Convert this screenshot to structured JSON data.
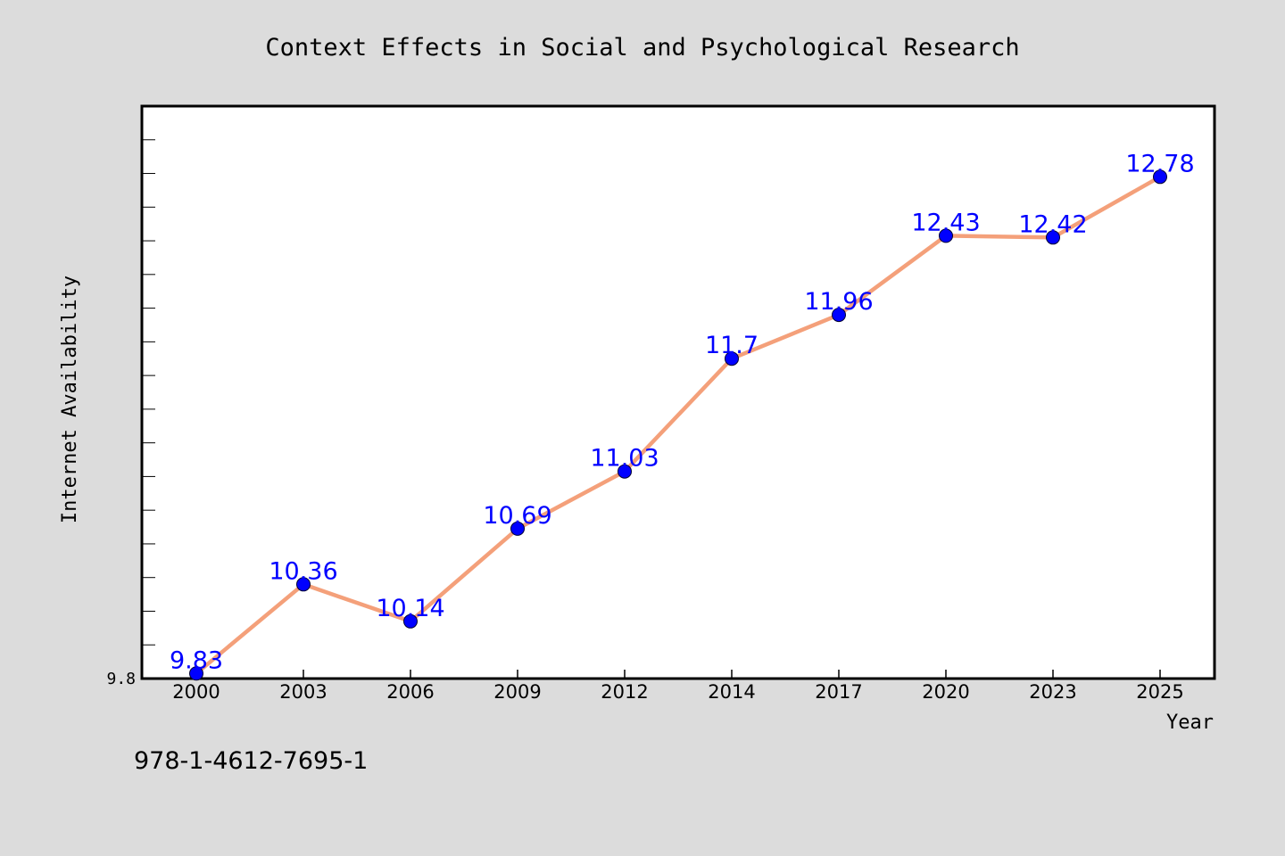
{
  "chart_data": {
    "type": "line",
    "title": "Context Effects in Social and Psychological Research",
    "xlabel": "Year",
    "ylabel": "Internet Availability",
    "categories": [
      "2000",
      "2003",
      "2006",
      "2009",
      "2012",
      "2014",
      "2017",
      "2020",
      "2023",
      "2025"
    ],
    "series": [
      {
        "values": [
          9.83,
          10.36,
          10.14,
          10.69,
          11.03,
          11.7,
          11.96,
          12.43,
          12.42,
          12.78
        ],
        "labels": [
          "9.83",
          "10.36",
          "10.14",
          "10.69",
          "11.03",
          "11.7",
          "11.96",
          "12.43",
          "12.42",
          "12.78"
        ],
        "line_color": "#f4a07a",
        "marker_color": "#0000ff",
        "label_color": "#0000ff"
      }
    ],
    "ylim": [
      9.8,
      13.2
    ],
    "y_tick_labels": [
      "9.8"
    ],
    "grid": false,
    "legend": "none",
    "colors": {
      "background": "#dcdcdc",
      "plot_background": "#ffffff"
    }
  },
  "footnote": "978-1-4612-7695-1"
}
